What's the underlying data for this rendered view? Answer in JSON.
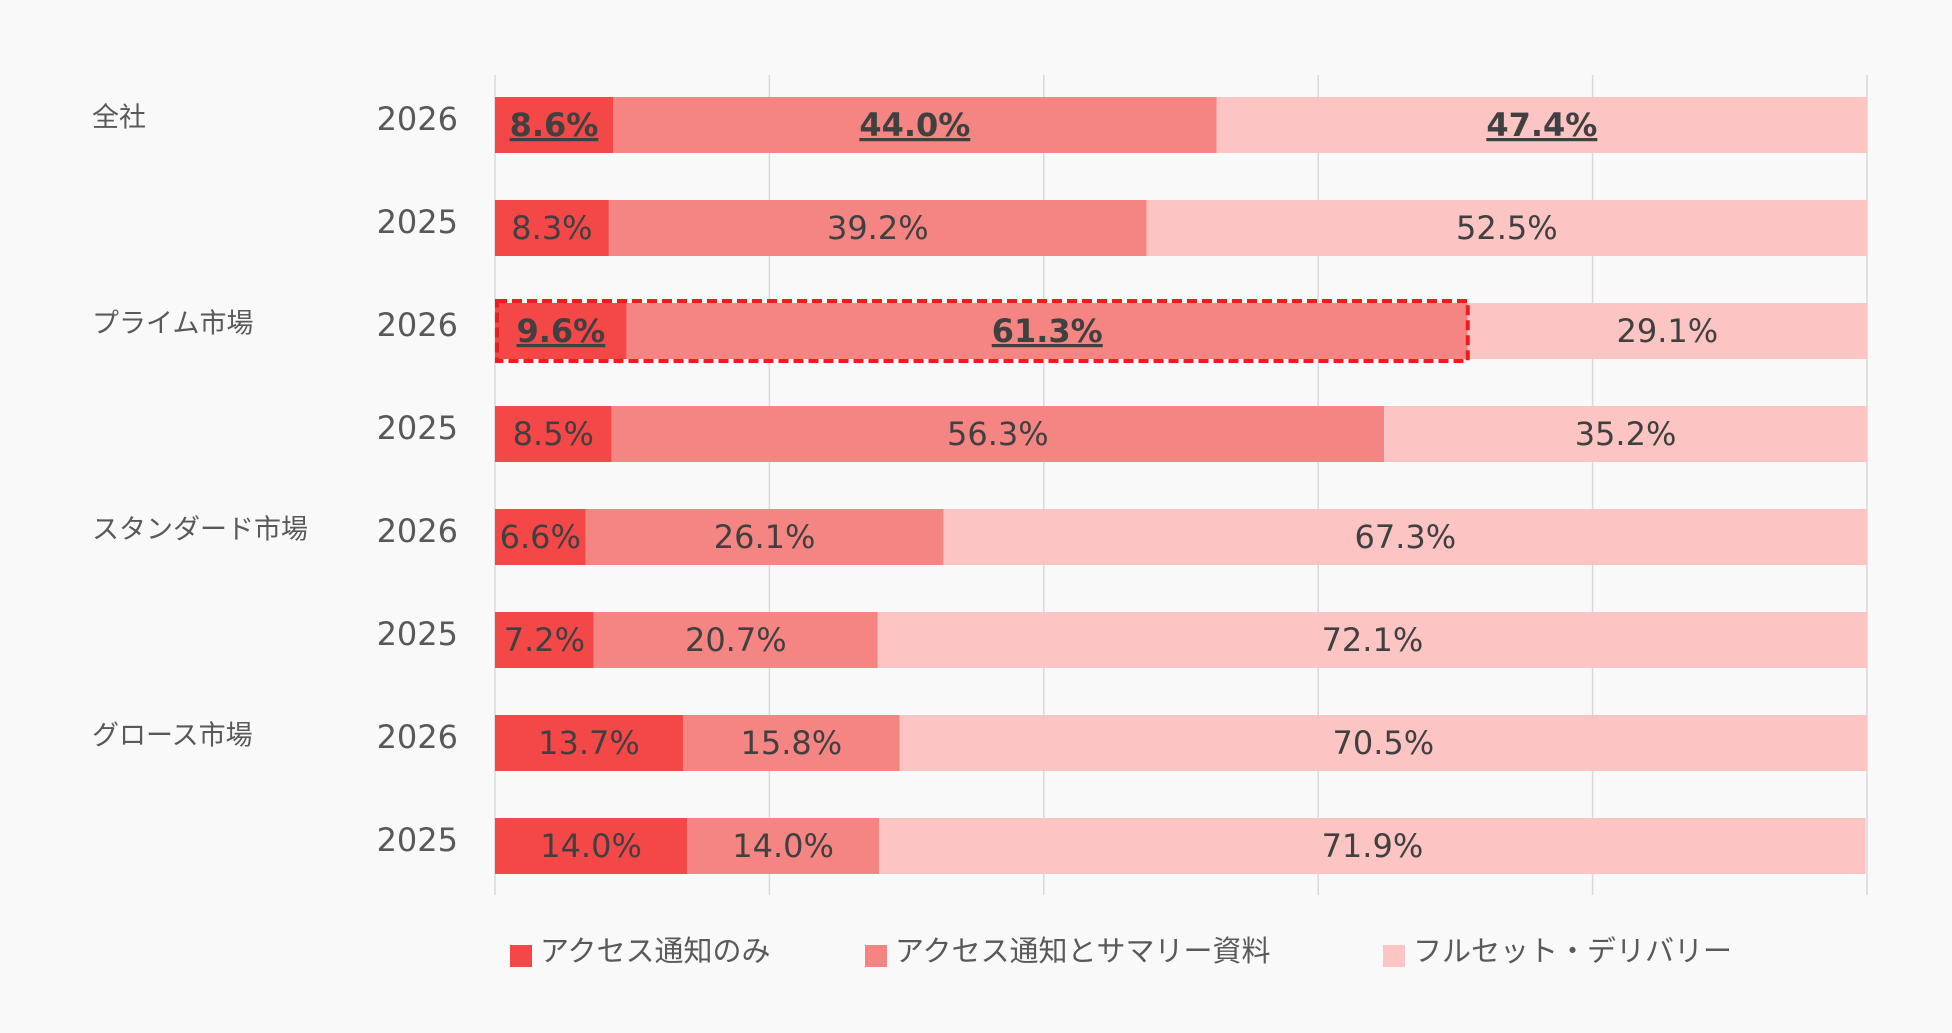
{
  "chart_data": {
    "type": "bar",
    "orientation": "horizontal",
    "stacked": true,
    "percent_stacked": true,
    "title": "",
    "xlabel": "",
    "ylabel": "",
    "xlim": [
      0,
      100
    ],
    "grid": true,
    "legend_position": "bottom",
    "groups": [
      {
        "label": "全社",
        "rows": [
          {
            "year": "2026",
            "values": [
              8.6,
              44.0,
              47.4
            ],
            "labels": [
              "8.6%",
              "44.0%",
              "47.4%"
            ],
            "emphasis": [
              true,
              true,
              true
            ]
          },
          {
            "year": "2025",
            "values": [
              8.3,
              39.2,
              52.5
            ],
            "labels": [
              "8.3%",
              "39.2%",
              "52.5%"
            ],
            "emphasis": [
              false,
              false,
              false
            ]
          }
        ]
      },
      {
        "label": "プライム市場",
        "rows": [
          {
            "year": "2026",
            "values": [
              9.6,
              61.3,
              29.1
            ],
            "labels": [
              "9.6%",
              "61.3%",
              "29.1%"
            ],
            "emphasis": [
              true,
              true,
              false
            ],
            "highlight_segments": [
              0,
              1
            ]
          },
          {
            "year": "2025",
            "values": [
              8.5,
              56.3,
              35.2
            ],
            "labels": [
              "8.5%",
              "56.3%",
              "35.2%"
            ],
            "emphasis": [
              false,
              false,
              false
            ]
          }
        ]
      },
      {
        "label": "スタンダード市場",
        "rows": [
          {
            "year": "2026",
            "values": [
              6.6,
              26.1,
              67.3
            ],
            "labels": [
              "6.6%",
              "26.1%",
              "67.3%"
            ],
            "emphasis": [
              false,
              false,
              false
            ]
          },
          {
            "year": "2025",
            "values": [
              7.2,
              20.7,
              72.1
            ],
            "labels": [
              "7.2%",
              "20.7%",
              "72.1%"
            ],
            "emphasis": [
              false,
              false,
              false
            ]
          }
        ]
      },
      {
        "label": "グロース市場",
        "rows": [
          {
            "year": "2026",
            "values": [
              13.7,
              15.8,
              70.5
            ],
            "labels": [
              "13.7%",
              "15.8%",
              "70.5%"
            ],
            "emphasis": [
              false,
              false,
              false
            ]
          },
          {
            "year": "2025",
            "values": [
              14.0,
              14.0,
              71.9
            ],
            "labels": [
              "14.0%",
              "14.0%",
              "71.9%"
            ],
            "emphasis": [
              false,
              false,
              false
            ]
          }
        ]
      }
    ],
    "series": [
      {
        "name": "アクセス通知のみ",
        "color": "#f44748"
      },
      {
        "name": "アクセス通知とサマリー資料",
        "color": "#f58583"
      },
      {
        "name": "フルセット・デリバリー",
        "color": "#fcc4c2"
      }
    ],
    "highlight_color": "#ee1c1c",
    "grid_color": "#d9d9d9",
    "text_color": "#404040",
    "label_color": "#595959"
  }
}
